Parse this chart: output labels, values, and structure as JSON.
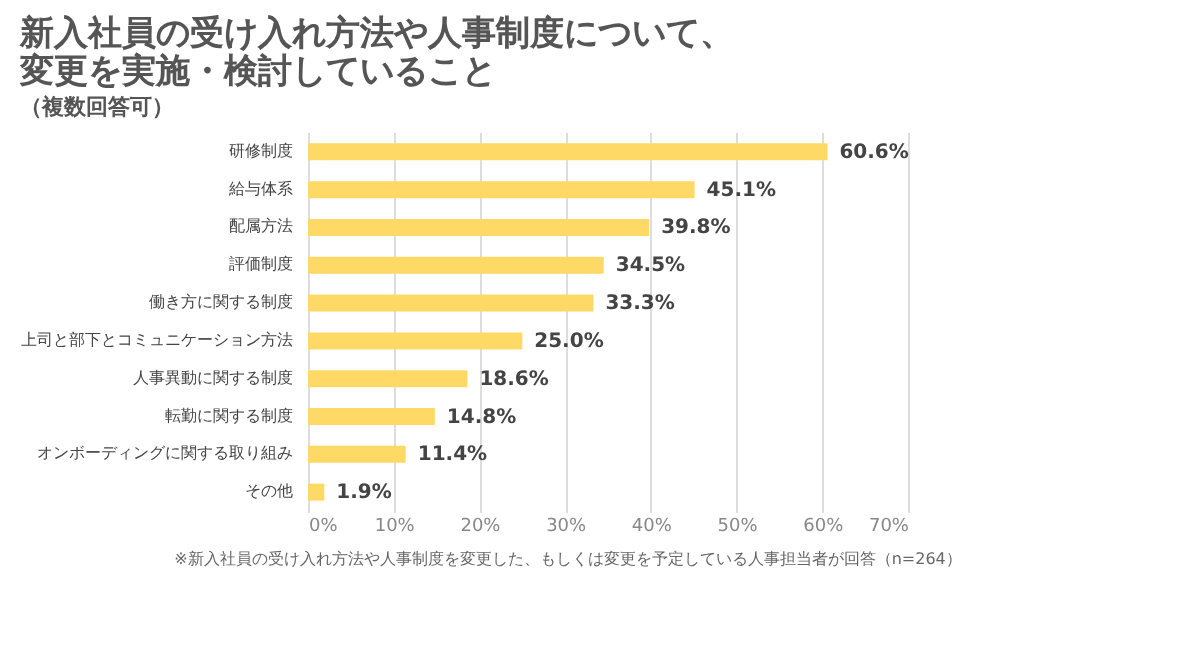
{
  "chart_data": {
    "type": "bar",
    "orientation": "horizontal",
    "title": [
      "新入社員の受け入れ方法や人事制度について、",
      "変更を実施・検討していること"
    ],
    "subtitle": "（複数回答可）",
    "categories": [
      "研修制度",
      "給与体系",
      "配属方法",
      "評価制度",
      "働き方に関する制度",
      "上司と部下とコミュニケーション方法",
      "人事異動に関する制度",
      "転勤に関する制度",
      "オンボーディングに関する取り組み",
      "その他"
    ],
    "values": [
      60.6,
      45.1,
      39.8,
      34.5,
      33.3,
      25.0,
      18.6,
      14.8,
      11.4,
      1.9
    ],
    "value_labels": [
      "60.6%",
      "45.1%",
      "39.8%",
      "34.5%",
      "33.3%",
      "25.0%",
      "18.6%",
      "14.8%",
      "11.4%",
      "1.9%"
    ],
    "color": "#ffd966",
    "xlim": [
      0,
      70
    ],
    "xticks": [
      {
        "value": 0,
        "label": "0%"
      },
      {
        "value": 10,
        "label": "10%"
      },
      {
        "value": 20,
        "label": "20%"
      },
      {
        "value": 30,
        "label": "30%"
      },
      {
        "value": 40,
        "label": "40%"
      },
      {
        "value": 50,
        "label": "50%"
      },
      {
        "value": 60,
        "label": "60%"
      },
      {
        "value": 70,
        "label": "70%"
      }
    ],
    "grid": "x",
    "annotations": [
      "※新入社員の受け入れ方法や人事制度を変更した、もしくは変更を予定している人事担当者が回答（n=264）"
    ]
  }
}
